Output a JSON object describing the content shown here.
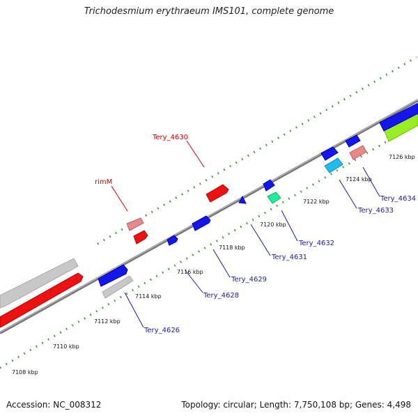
{
  "header": {
    "title": "Trichodesmium erythraeum IMS101, complete genome"
  },
  "footer": {
    "accession": "Accession: NC_008312",
    "topology": "Topology: circular; Length: 7,750,108 bp; Genes: 4,498"
  },
  "scale_ticks": [
    "7108 kbp",
    "7110 kbp",
    "7112 kbp",
    "7114 kbp",
    "7116 kbp",
    "7118 kbp",
    "7120 kbp",
    "7122 kbp",
    "7124 kbp",
    "7126 kbp"
  ],
  "gene_labels": {
    "tery_4630": "Tery_4630",
    "rimm": "rimM",
    "tery_4626": "Tery_4626",
    "tery_4628": "Tery_4628",
    "tery_4629": "Tery_4629",
    "tery_4631": "Tery_4631",
    "tery_4632": "Tery_4632",
    "tery_4633": "Tery_4633",
    "tery_4634": "Tery_4634"
  },
  "colors": {
    "backbone": "#808080",
    "tick_marks": "#2e8b2e",
    "forward_red": "#ee1111",
    "pink": "#e88888",
    "blue": "#1515ee",
    "gray": "#c8c8c8",
    "cyan": "#22bbee",
    "teal": "#22ee99",
    "lime": "#99ee22",
    "label_red": "#cc0000",
    "label_blue": "#1a1aaa"
  }
}
